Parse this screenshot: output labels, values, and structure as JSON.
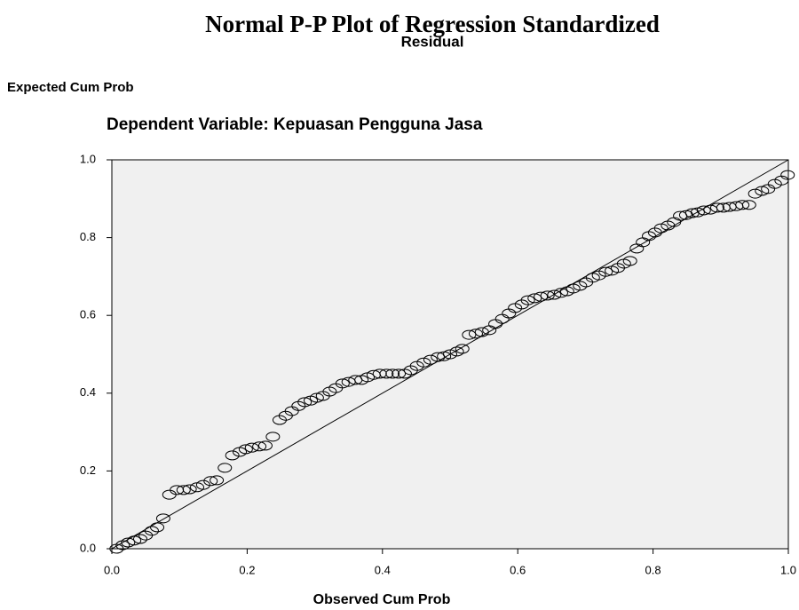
{
  "chart_data": {
    "type": "scatter",
    "title": "Normal P-P Plot of Regression Standardized",
    "title_continued": "Residual",
    "y_label": "Expected Cum Prob",
    "subtitle": "Dependent Variable: Kepuasan Pengguna Jasa",
    "x_label": "Observed Cum Prob",
    "xlim": [
      0,
      1
    ],
    "ylim": [
      0,
      1
    ],
    "xticks": [
      {
        "value": 0,
        "label": "0.0"
      },
      0.2,
      0.4,
      0.6,
      0.8,
      {
        "value": 1,
        "label": "1.0"
      }
    ],
    "yticks": [
      {
        "value": 0,
        "label": "0.0"
      },
      0.2,
      0.4,
      0.6,
      0.8,
      {
        "value": 1,
        "label": "1.0"
      }
    ],
    "reference_line": {
      "x": [
        0,
        1
      ],
      "y": [
        0,
        1
      ]
    },
    "color": "#000000",
    "x": [
      0.007,
      0.016,
      0.024,
      0.033,
      0.042,
      0.05,
      0.059,
      0.067,
      0.076,
      0.085,
      0.096,
      0.106,
      0.115,
      0.126,
      0.135,
      0.146,
      0.155,
      0.167,
      0.178,
      0.189,
      0.198,
      0.207,
      0.218,
      0.227,
      0.238,
      0.248,
      0.257,
      0.266,
      0.276,
      0.285,
      0.294,
      0.303,
      0.312,
      0.322,
      0.331,
      0.341,
      0.35,
      0.36,
      0.369,
      0.378,
      0.387,
      0.396,
      0.406,
      0.415,
      0.424,
      0.433,
      0.442,
      0.451,
      0.461,
      0.471,
      0.482,
      0.491,
      0.5,
      0.51,
      0.518,
      0.528,
      0.538,
      0.547,
      0.558,
      0.567,
      0.577,
      0.587,
      0.596,
      0.606,
      0.615,
      0.625,
      0.634,
      0.644,
      0.654,
      0.664,
      0.673,
      0.682,
      0.692,
      0.701,
      0.711,
      0.72,
      0.73,
      0.739,
      0.748,
      0.757,
      0.766,
      0.776,
      0.785,
      0.794,
      0.803,
      0.812,
      0.822,
      0.831,
      0.84,
      0.849,
      0.858,
      0.866,
      0.875,
      0.885,
      0.895,
      0.904,
      0.913,
      0.923,
      0.932,
      0.942,
      0.951,
      0.961,
      0.97,
      0.98,
      0.99,
      0.999
    ],
    "values": [
      0.0,
      0.009,
      0.016,
      0.021,
      0.025,
      0.034,
      0.046,
      0.055,
      0.078,
      0.139,
      0.151,
      0.151,
      0.153,
      0.158,
      0.164,
      0.174,
      0.176,
      0.208,
      0.24,
      0.249,
      0.256,
      0.26,
      0.263,
      0.265,
      0.288,
      0.331,
      0.342,
      0.354,
      0.367,
      0.377,
      0.381,
      0.388,
      0.393,
      0.404,
      0.413,
      0.425,
      0.429,
      0.434,
      0.434,
      0.441,
      0.447,
      0.45,
      0.45,
      0.45,
      0.45,
      0.45,
      0.459,
      0.47,
      0.479,
      0.486,
      0.493,
      0.495,
      0.5,
      0.507,
      0.514,
      0.55,
      0.553,
      0.557,
      0.562,
      0.578,
      0.591,
      0.605,
      0.619,
      0.628,
      0.639,
      0.644,
      0.648,
      0.651,
      0.653,
      0.658,
      0.662,
      0.669,
      0.676,
      0.685,
      0.697,
      0.703,
      0.712,
      0.715,
      0.722,
      0.733,
      0.74,
      0.772,
      0.788,
      0.804,
      0.813,
      0.824,
      0.831,
      0.84,
      0.856,
      0.858,
      0.863,
      0.865,
      0.87,
      0.872,
      0.877,
      0.877,
      0.879,
      0.881,
      0.884,
      0.884,
      0.913,
      0.92,
      0.925,
      0.938,
      0.947,
      0.961
    ]
  }
}
